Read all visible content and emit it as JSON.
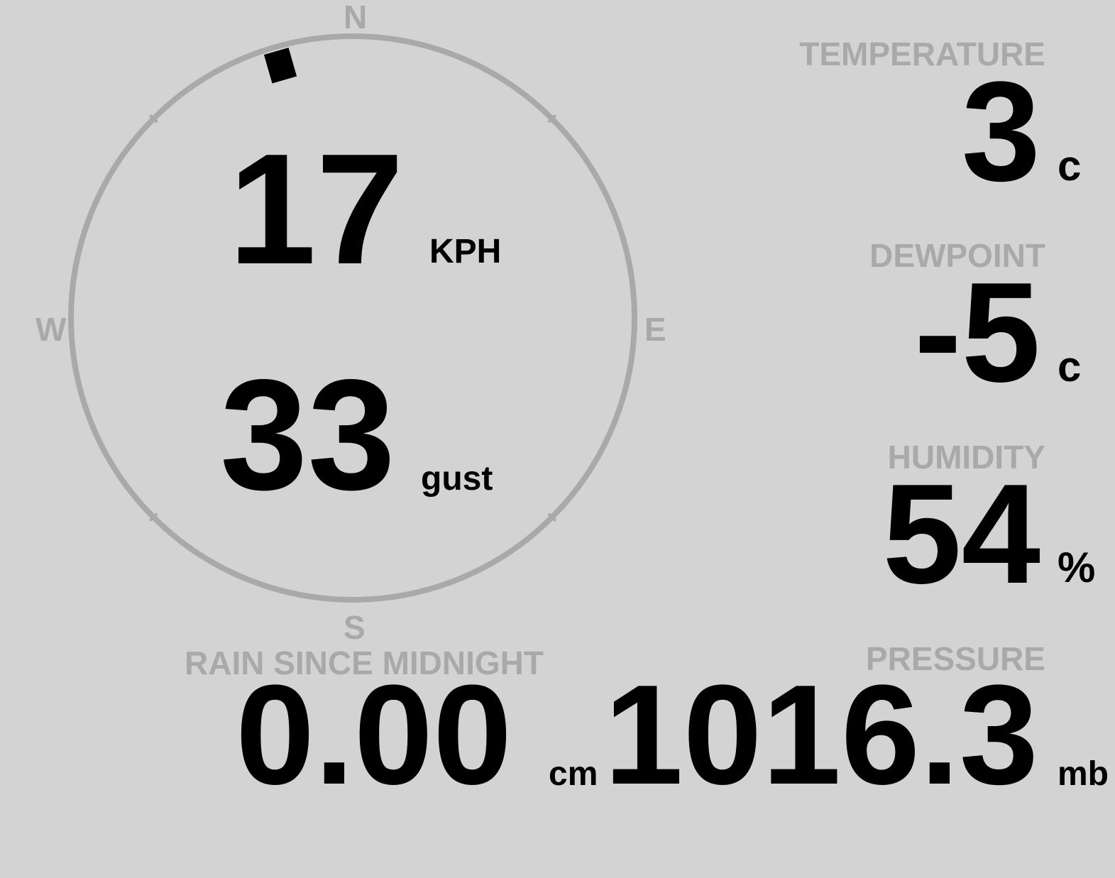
{
  "wind": {
    "compass": {
      "n": "N",
      "s": "S",
      "e": "E",
      "w": "W"
    },
    "direction_deg": 344,
    "speed": "17",
    "speed_unit": "KPH",
    "gust": "33",
    "gust_label": "gust"
  },
  "temperature": {
    "label": "TEMPERATURE",
    "value": "3",
    "unit": "c"
  },
  "dewpoint": {
    "label": "DEWPOINT",
    "value": "-5",
    "unit": "c"
  },
  "humidity": {
    "label": "HUMIDITY",
    "value": "54",
    "unit": "%"
  },
  "pressure": {
    "label": "PRESSURE",
    "value": "1016.3",
    "unit": "mb"
  },
  "rain": {
    "label": "RAIN SINCE MIDNIGHT",
    "value": "0.00",
    "unit": "cm"
  },
  "colors": {
    "background": "#d3d3d3",
    "muted": "#a9a9a9",
    "value": "#000000"
  }
}
